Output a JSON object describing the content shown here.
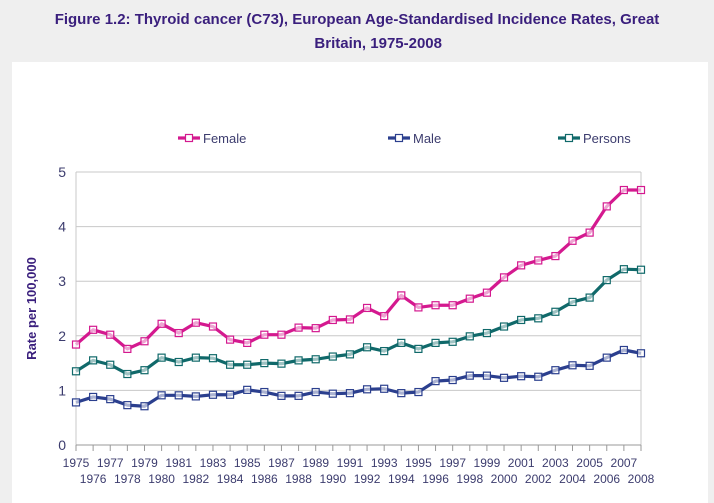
{
  "title": {
    "line1": "Figure 1.2: Thyroid cancer (C73), European Age-Standardised Incidence Rates, Great",
    "line2": "Britain, 1975-2008"
  },
  "chart_data": {
    "type": "line",
    "title": "Figure 1.2: Thyroid cancer (C73), European Age-Standardised Incidence Rates, Great Britain, 1975-2008",
    "xlabel": "",
    "ylabel": "Rate per 100,000",
    "ylim": [
      0,
      5
    ],
    "yticks": [
      "0",
      "1",
      "2",
      "3",
      "4",
      "5"
    ],
    "grid": "horizontal",
    "legend_position": "top",
    "marker": "hollow-square",
    "x": [
      "1975",
      "1976",
      "1977",
      "1978",
      "1979",
      "1980",
      "1981",
      "1982",
      "1983",
      "1984",
      "1985",
      "1986",
      "1987",
      "1988",
      "1989",
      "1990",
      "1991",
      "1992",
      "1993",
      "1994",
      "1995",
      "1996",
      "1997",
      "1998",
      "1999",
      "2000",
      "2001",
      "2002",
      "2003",
      "2004",
      "2005",
      "2006",
      "2007",
      "2008"
    ],
    "series": [
      {
        "name": "Female",
        "color": "#d4198f",
        "values": [
          1.84,
          2.11,
          2.02,
          1.76,
          1.9,
          2.22,
          2.05,
          2.24,
          2.17,
          1.93,
          1.87,
          2.02,
          2.02,
          2.15,
          2.14,
          2.29,
          2.3,
          2.51,
          2.36,
          2.74,
          2.52,
          2.56,
          2.56,
          2.68,
          2.79,
          3.07,
          3.29,
          3.38,
          3.46,
          3.74,
          3.89,
          4.37,
          4.67,
          4.67
        ]
      },
      {
        "name": "Male",
        "color": "#2b3f8e",
        "values": [
          0.78,
          0.88,
          0.84,
          0.73,
          0.71,
          0.91,
          0.91,
          0.89,
          0.92,
          0.92,
          1.01,
          0.97,
          0.9,
          0.9,
          0.97,
          0.94,
          0.95,
          1.02,
          1.03,
          0.95,
          0.97,
          1.17,
          1.19,
          1.27,
          1.27,
          1.23,
          1.26,
          1.25,
          1.37,
          1.46,
          1.45,
          1.6,
          1.74,
          1.68
        ]
      },
      {
        "name": "Persons",
        "color": "#10696a",
        "values": [
          1.35,
          1.55,
          1.47,
          1.3,
          1.37,
          1.6,
          1.52,
          1.6,
          1.59,
          1.47,
          1.47,
          1.5,
          1.49,
          1.55,
          1.57,
          1.62,
          1.66,
          1.79,
          1.72,
          1.87,
          1.76,
          1.87,
          1.89,
          1.99,
          2.05,
          2.17,
          2.29,
          2.32,
          2.44,
          2.62,
          2.7,
          3.02,
          3.22,
          3.21
        ]
      }
    ]
  }
}
